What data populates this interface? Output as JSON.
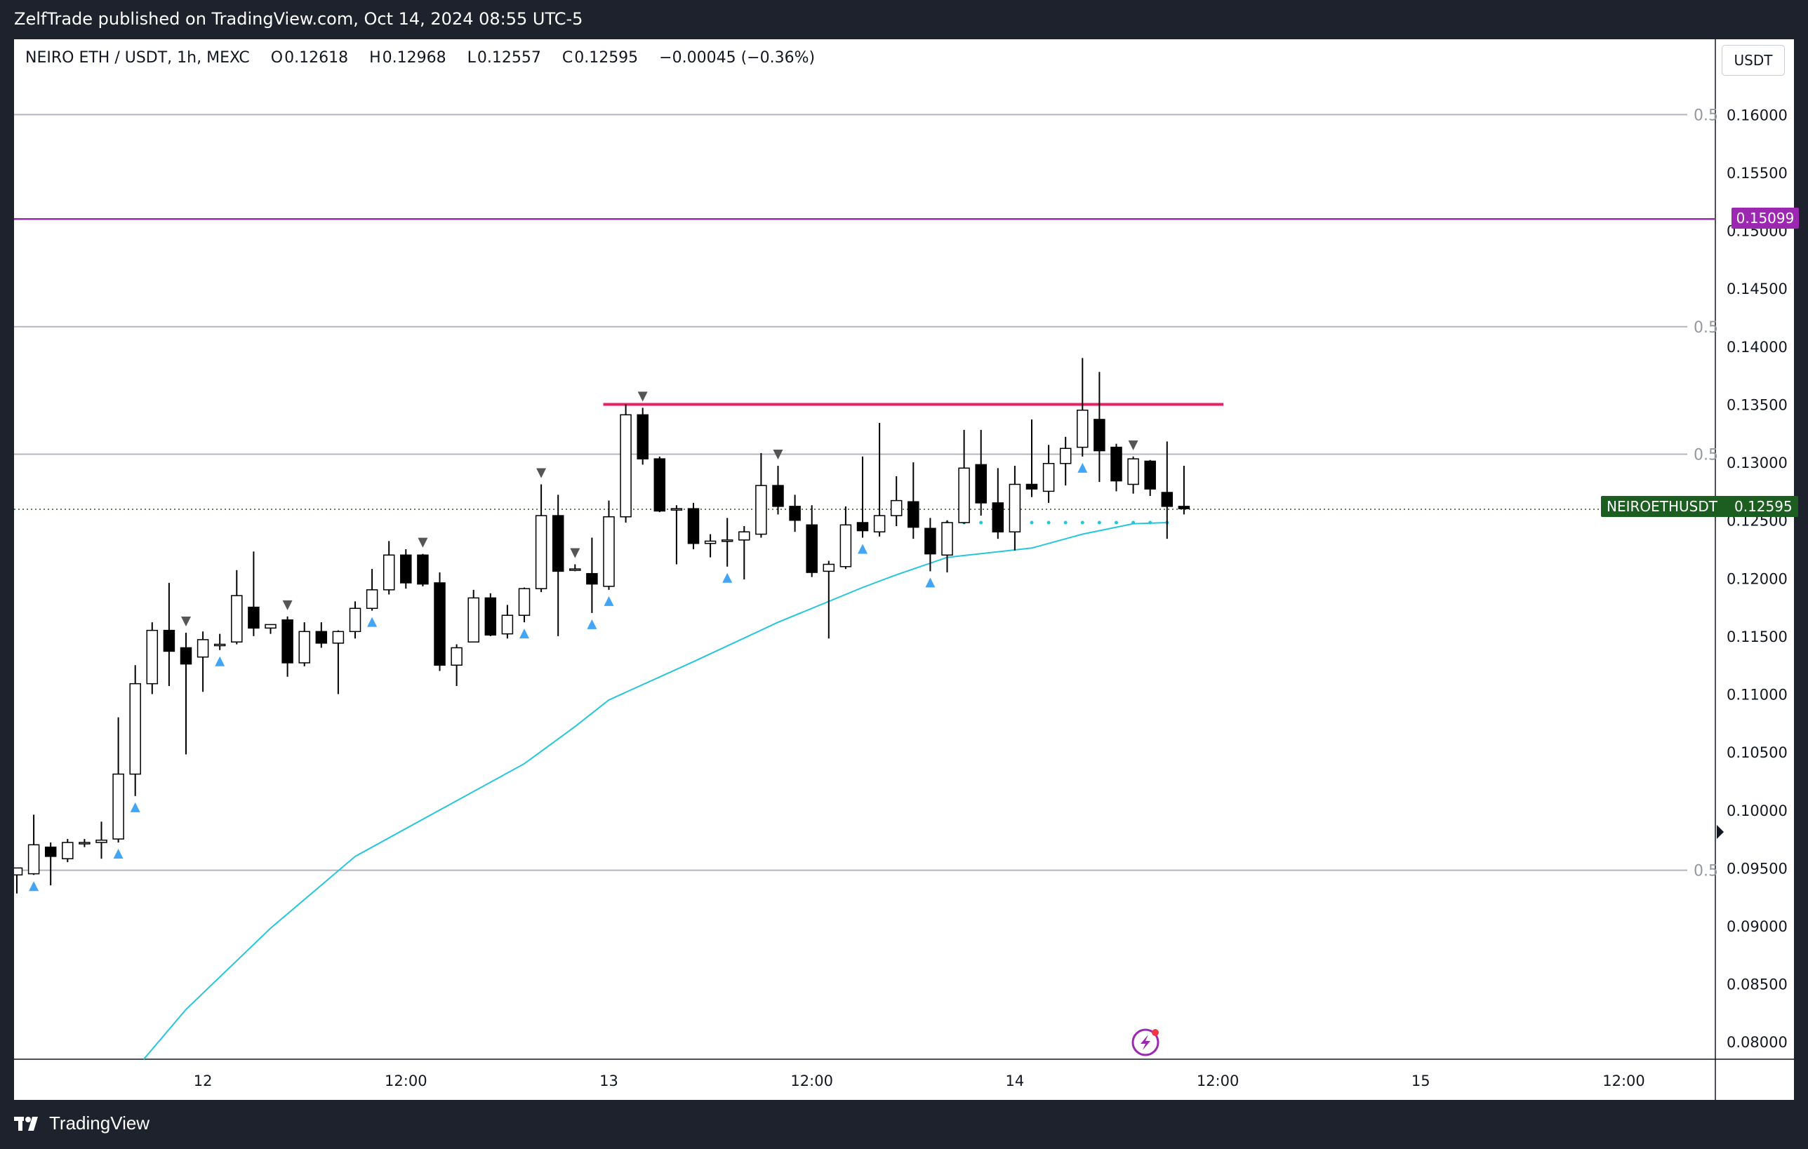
{
  "header": {
    "published_line": "ZelfTrade published on TradingView.com, Oct 14, 2024 08:55 UTC-5"
  },
  "legend": {
    "symbol": "NEIRO ETH / USDT, 1h, MEXC",
    "o_label": "O",
    "o_value": "0.12618",
    "h_label": "H",
    "h_value": "0.12968",
    "l_label": "L",
    "l_value": "0.12557",
    "c_label": "C",
    "c_value": "0.12595",
    "change": "−0.00045 (−0.36%)"
  },
  "currency_button": "USDT",
  "price_badges": {
    "level_price": "0.15099",
    "symbol_name": "NEIROETHUSDT",
    "last_price": "0.12595"
  },
  "footer": {
    "brand": "TradingView"
  },
  "colors": {
    "background": "#ffffff",
    "frame": "#1e222d",
    "ema": "#26c6da",
    "resistance": "#e91e63",
    "level_line": "#9c27b0",
    "fib_line": "#b2b5be",
    "last_price_line": "#1b5e20",
    "signal_up": "#42a5f5",
    "signal_down": "#555555"
  },
  "chart_data": {
    "type": "candlestick",
    "symbol": "NEIRO ETH / USDT",
    "timeframe": "1h",
    "exchange": "MEXC",
    "y_range": [
      0.0785,
      0.1665
    ],
    "y_ticks": [
      "0.16000",
      "0.15500",
      "0.15000",
      "0.14500",
      "0.14000",
      "0.13500",
      "0.13000",
      "0.12500",
      "0.12000",
      "0.11500",
      "0.11000",
      "0.10500",
      "0.10000",
      "0.09500",
      "0.09000",
      "0.08500",
      "0.08000"
    ],
    "x_ticks": [
      {
        "label": "12",
        "bar": 11
      },
      {
        "label": "12:00",
        "bar": 23
      },
      {
        "label": "13",
        "bar": 35
      },
      {
        "label": "12:00",
        "bar": 47
      },
      {
        "label": "14",
        "bar": 59
      },
      {
        "label": "12:00",
        "bar": 71
      },
      {
        "label": "15",
        "bar": 83
      },
      {
        "label": "12:00",
        "bar": 95
      }
    ],
    "candles": [
      {
        "o": 0.0944,
        "h": 0.095,
        "l": 0.0928,
        "c": 0.095
      },
      {
        "o": 0.0945,
        "h": 0.0996,
        "l": 0.0944,
        "c": 0.097
      },
      {
        "o": 0.0968,
        "h": 0.0972,
        "l": 0.0935,
        "c": 0.096
      },
      {
        "o": 0.0958,
        "h": 0.0975,
        "l": 0.0955,
        "c": 0.0972
      },
      {
        "o": 0.0972,
        "h": 0.0975,
        "l": 0.0968,
        "c": 0.0972
      },
      {
        "o": 0.0972,
        "h": 0.099,
        "l": 0.0958,
        "c": 0.0974
      },
      {
        "o": 0.0975,
        "h": 0.108,
        "l": 0.0972,
        "c": 0.1031
      },
      {
        "o": 0.1031,
        "h": 0.1125,
        "l": 0.1012,
        "c": 0.1109
      },
      {
        "o": 0.1109,
        "h": 0.1162,
        "l": 0.11,
        "c": 0.1155
      },
      {
        "o": 0.1155,
        "h": 0.1196,
        "l": 0.1107,
        "c": 0.1137
      },
      {
        "o": 0.114,
        "h": 0.1153,
        "l": 0.1048,
        "c": 0.1126
      },
      {
        "o": 0.1132,
        "h": 0.1154,
        "l": 0.1102,
        "c": 0.1147
      },
      {
        "o": 0.1143,
        "h": 0.1152,
        "l": 0.1138,
        "c": 0.1143
      },
      {
        "o": 0.1145,
        "h": 0.1207,
        "l": 0.1143,
        "c": 0.1185
      },
      {
        "o": 0.1175,
        "h": 0.1223,
        "l": 0.115,
        "c": 0.1157
      },
      {
        "o": 0.1157,
        "h": 0.116,
        "l": 0.1152,
        "c": 0.116
      },
      {
        "o": 0.1164,
        "h": 0.1167,
        "l": 0.1115,
        "c": 0.1127
      },
      {
        "o": 0.1127,
        "h": 0.1162,
        "l": 0.1124,
        "c": 0.1154
      },
      {
        "o": 0.1154,
        "h": 0.1162,
        "l": 0.114,
        "c": 0.1144
      },
      {
        "o": 0.1144,
        "h": 0.1155,
        "l": 0.11,
        "c": 0.1154
      },
      {
        "o": 0.1154,
        "h": 0.118,
        "l": 0.1148,
        "c": 0.1174
      },
      {
        "o": 0.1174,
        "h": 0.1208,
        "l": 0.1172,
        "c": 0.119
      },
      {
        "o": 0.119,
        "h": 0.1232,
        "l": 0.1186,
        "c": 0.122
      },
      {
        "o": 0.122,
        "h": 0.1225,
        "l": 0.1191,
        "c": 0.1196
      },
      {
        "o": 0.122,
        "h": 0.1221,
        "l": 0.1193,
        "c": 0.1195
      },
      {
        "o": 0.1196,
        "h": 0.1205,
        "l": 0.112,
        "c": 0.1125
      },
      {
        "o": 0.1125,
        "h": 0.1143,
        "l": 0.1107,
        "c": 0.114
      },
      {
        "o": 0.1145,
        "h": 0.119,
        "l": 0.1145,
        "c": 0.1183
      },
      {
        "o": 0.1183,
        "h": 0.1187,
        "l": 0.115,
        "c": 0.1151
      },
      {
        "o": 0.1152,
        "h": 0.1177,
        "l": 0.1148,
        "c": 0.1168
      },
      {
        "o": 0.1168,
        "h": 0.1192,
        "l": 0.1162,
        "c": 0.1191
      },
      {
        "o": 0.1191,
        "h": 0.1281,
        "l": 0.1188,
        "c": 0.1254
      },
      {
        "o": 0.1254,
        "h": 0.1272,
        "l": 0.115,
        "c": 0.1206
      },
      {
        "o": 0.1208,
        "h": 0.1212,
        "l": 0.1206,
        "c": 0.1208
      },
      {
        "o": 0.1204,
        "h": 0.1235,
        "l": 0.117,
        "c": 0.1195
      },
      {
        "o": 0.1193,
        "h": 0.1267,
        "l": 0.119,
        "c": 0.1253
      },
      {
        "o": 0.1253,
        "h": 0.135,
        "l": 0.1248,
        "c": 0.1341
      },
      {
        "o": 0.1341,
        "h": 0.1347,
        "l": 0.1298,
        "c": 0.1303
      },
      {
        "o": 0.1303,
        "h": 0.1305,
        "l": 0.1257,
        "c": 0.1258
      },
      {
        "o": 0.126,
        "h": 0.1263,
        "l": 0.1212,
        "c": 0.126
      },
      {
        "o": 0.126,
        "h": 0.1265,
        "l": 0.1225,
        "c": 0.123
      },
      {
        "o": 0.123,
        "h": 0.1238,
        "l": 0.1218,
        "c": 0.1232
      },
      {
        "o": 0.1232,
        "h": 0.1252,
        "l": 0.121,
        "c": 0.1233
      },
      {
        "o": 0.1233,
        "h": 0.1245,
        "l": 0.1199,
        "c": 0.124
      },
      {
        "o": 0.1238,
        "h": 0.1308,
        "l": 0.1235,
        "c": 0.128
      },
      {
        "o": 0.128,
        "h": 0.1297,
        "l": 0.1255,
        "c": 0.1262
      },
      {
        "o": 0.1262,
        "h": 0.1272,
        "l": 0.124,
        "c": 0.125
      },
      {
        "o": 0.1246,
        "h": 0.1263,
        "l": 0.1201,
        "c": 0.1205
      },
      {
        "o": 0.1206,
        "h": 0.1215,
        "l": 0.1148,
        "c": 0.1212
      },
      {
        "o": 0.121,
        "h": 0.1262,
        "l": 0.1208,
        "c": 0.1246
      },
      {
        "o": 0.1248,
        "h": 0.1305,
        "l": 0.1235,
        "c": 0.1241
      },
      {
        "o": 0.124,
        "h": 0.1334,
        "l": 0.1236,
        "c": 0.1254
      },
      {
        "o": 0.1254,
        "h": 0.1288,
        "l": 0.1245,
        "c": 0.1267
      },
      {
        "o": 0.1266,
        "h": 0.13,
        "l": 0.1234,
        "c": 0.1244
      },
      {
        "o": 0.1243,
        "h": 0.1252,
        "l": 0.1206,
        "c": 0.1221
      },
      {
        "o": 0.122,
        "h": 0.125,
        "l": 0.1205,
        "c": 0.1248
      },
      {
        "o": 0.1248,
        "h": 0.1328,
        "l": 0.1247,
        "c": 0.1295
      },
      {
        "o": 0.1298,
        "h": 0.1328,
        "l": 0.1254,
        "c": 0.1265
      },
      {
        "o": 0.1265,
        "h": 0.1295,
        "l": 0.1234,
        "c": 0.124
      },
      {
        "o": 0.124,
        "h": 0.1297,
        "l": 0.1224,
        "c": 0.1281
      },
      {
        "o": 0.1281,
        "h": 0.1337,
        "l": 0.127,
        "c": 0.1277
      },
      {
        "o": 0.1275,
        "h": 0.1315,
        "l": 0.1265,
        "c": 0.1299
      },
      {
        "o": 0.1299,
        "h": 0.1322,
        "l": 0.128,
        "c": 0.1312
      },
      {
        "o": 0.1313,
        "h": 0.139,
        "l": 0.1305,
        "c": 0.1345
      },
      {
        "o": 0.1337,
        "h": 0.1378,
        "l": 0.1283,
        "c": 0.131
      },
      {
        "o": 0.1313,
        "h": 0.1316,
        "l": 0.1275,
        "c": 0.1284
      },
      {
        "o": 0.1281,
        "h": 0.1305,
        "l": 0.1273,
        "c": 0.1303
      },
      {
        "o": 0.1301,
        "h": 0.1302,
        "l": 0.1271,
        "c": 0.1277
      },
      {
        "o": 0.1274,
        "h": 0.1318,
        "l": 0.1234,
        "c": 0.1262
      },
      {
        "o": 0.1262,
        "h": 0.1297,
        "l": 0.1255,
        "c": 0.126
      }
    ],
    "ema": [
      {
        "bar": 7.5,
        "v": 0.0785
      },
      {
        "bar": 10,
        "v": 0.0828
      },
      {
        "bar": 15,
        "v": 0.0898
      },
      {
        "bar": 20,
        "v": 0.096
      },
      {
        "bar": 25,
        "v": 0.1
      },
      {
        "bar": 30,
        "v": 0.104
      },
      {
        "bar": 33,
        "v": 0.1072
      },
      {
        "bar": 35,
        "v": 0.1095
      },
      {
        "bar": 40,
        "v": 0.1128
      },
      {
        "bar": 45,
        "v": 0.1162
      },
      {
        "bar": 50,
        "v": 0.1192
      },
      {
        "bar": 52,
        "v": 0.1203
      },
      {
        "bar": 55,
        "v": 0.1218
      },
      {
        "bar": 60,
        "v": 0.1226
      },
      {
        "bar": 63,
        "v": 0.1238
      },
      {
        "bar": 66,
        "v": 0.1247
      },
      {
        "bar": 68,
        "v": 0.1248
      }
    ],
    "fib_levels": [
      {
        "label": "0.5",
        "v": 0.16
      },
      {
        "label": "0.5",
        "v": 0.1417
      },
      {
        "label": "0.5",
        "v": 0.1307
      },
      {
        "label": "0.5",
        "v": 0.0948
      }
    ],
    "horizontal_levels": [
      {
        "v": 0.15099,
        "name": "0.15099"
      }
    ],
    "resistance": {
      "v": 0.135,
      "from_bar": 35,
      "to_bar": 71
    },
    "last_price": 0.12595,
    "up_signals": [
      1,
      6,
      7,
      12,
      21,
      30,
      34,
      35,
      42,
      50,
      54,
      63
    ],
    "down_signals": [
      10,
      16,
      24,
      31,
      33,
      37,
      45,
      66
    ],
    "dot_signals": {
      "from_bar": 55,
      "to_bar": 68,
      "v": 0.1248
    }
  }
}
